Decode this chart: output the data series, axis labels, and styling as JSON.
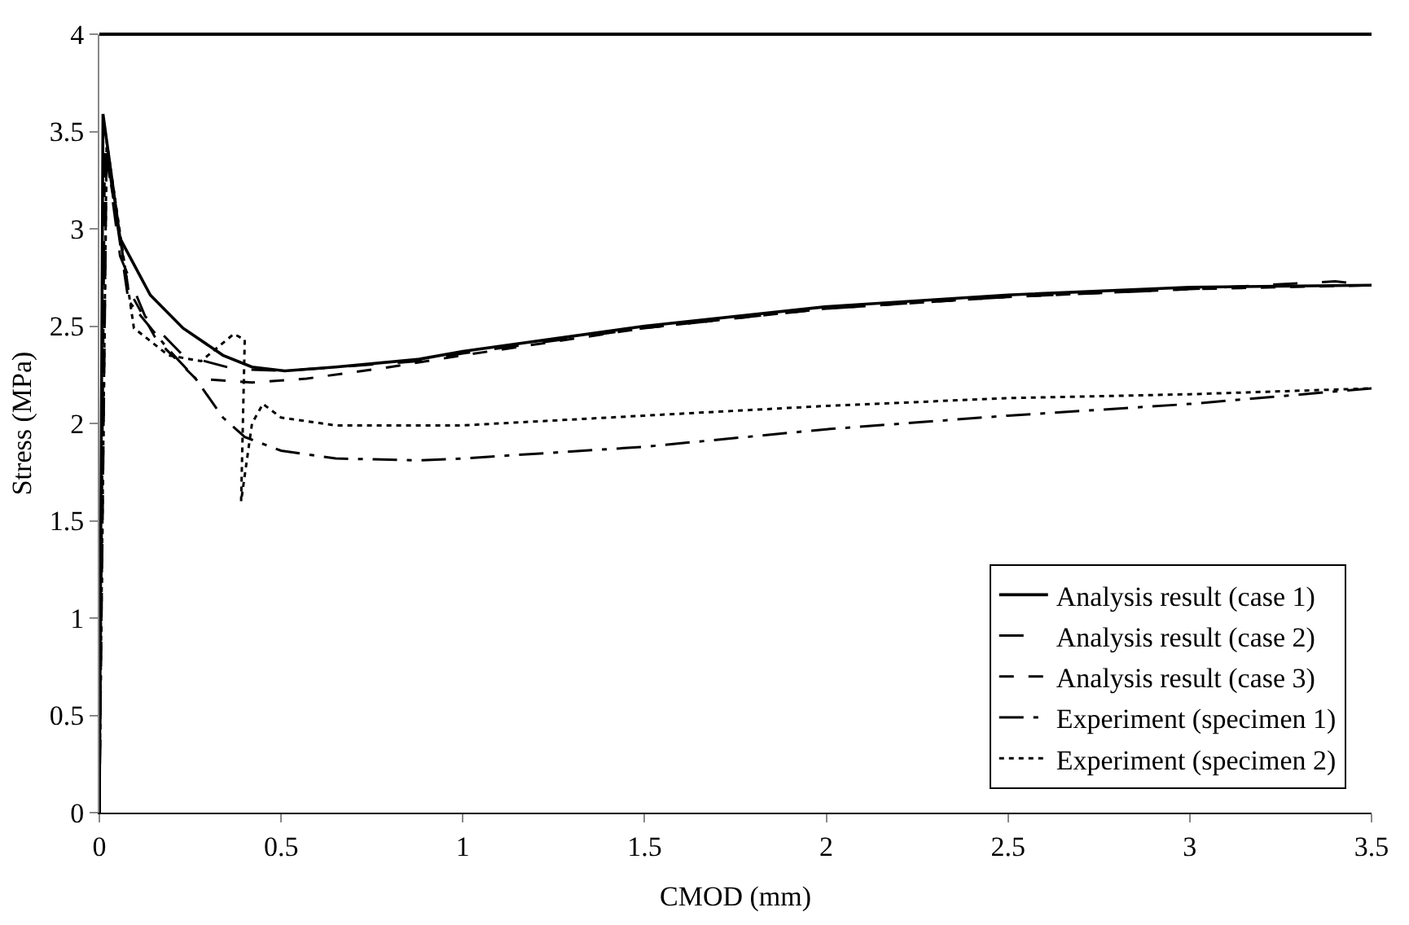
{
  "chart_data": {
    "type": "line",
    "xlabel": "CMOD (mm)",
    "ylabel": "Stress (MPa)",
    "xlim": [
      0,
      3.5
    ],
    "xticks": [
      0,
      0.5,
      1,
      1.5,
      2,
      2.5,
      3,
      3.5
    ],
    "ylim": [
      0,
      4
    ],
    "yticks": [
      0,
      0.5,
      1,
      1.5,
      2,
      2.5,
      3,
      3.5,
      4
    ],
    "legend": "bottom right",
    "marker": "none",
    "series": [
      {
        "name": "Analysis result (case 1)",
        "color": "#000000",
        "line_style": "solid",
        "x": [
          0,
          0.01,
          0.057,
          0.14,
          0.23,
          0.34,
          0.42,
          0.51,
          0.65,
          0.88,
          1.0,
          1.5,
          2.0,
          2.5,
          3.0,
          3.5
        ],
        "values": [
          0,
          3.59,
          2.95,
          2.66,
          2.49,
          2.35,
          2.29,
          2.27,
          2.29,
          2.33,
          2.37,
          2.5,
          2.6,
          2.66,
          2.7,
          2.71
        ]
      },
      {
        "name": "Analysis result (case 2)",
        "color": "#000000",
        "line_style": "longdash",
        "x": [
          0,
          0.015,
          0.057,
          0.126,
          0.23,
          0.37,
          0.51,
          0.88,
          1.0,
          1.5,
          2.0,
          2.5,
          3.0,
          3.4,
          3.5
        ],
        "values": [
          0,
          3.45,
          2.86,
          2.55,
          2.35,
          2.28,
          2.27,
          2.32,
          2.36,
          2.49,
          2.59,
          2.65,
          2.69,
          2.73,
          2.71
        ]
      },
      {
        "name": "Analysis result (case 3)",
        "color": "#000000",
        "line_style": "dashed",
        "x": [
          0,
          0.015,
          0.08,
          0.157,
          0.265,
          0.42,
          0.57,
          0.8,
          1.0,
          1.5,
          2.0,
          2.5,
          3.0,
          3.5
        ],
        "values": [
          0,
          3.42,
          2.69,
          2.43,
          2.23,
          2.21,
          2.23,
          2.29,
          2.35,
          2.49,
          2.59,
          2.65,
          2.69,
          2.71
        ]
      },
      {
        "name": "Experiment (specimen 1)",
        "color": "#000000",
        "line_style": "dashdot",
        "x": [
          0,
          0.02,
          0.08,
          0.19,
          0.265,
          0.34,
          0.4,
          0.5,
          0.65,
          0.88,
          1.0,
          1.5,
          2.0,
          2.5,
          3.0,
          3.5
        ],
        "values": [
          0,
          3.4,
          2.63,
          2.38,
          2.23,
          2.03,
          1.93,
          1.86,
          1.82,
          1.81,
          1.82,
          1.88,
          1.97,
          2.04,
          2.1,
          2.18
        ]
      },
      {
        "name": "Experiment (specimen 2)",
        "color": "#000000",
        "line_style": "dotted",
        "x": [
          0,
          0.02,
          0.095,
          0.19,
          0.28,
          0.37,
          0.4,
          0.39,
          0.42,
          0.45,
          0.5,
          0.65,
          0.88,
          1.0,
          1.5,
          2.0,
          2.5,
          3.0,
          3.5
        ],
        "values": [
          0.08,
          3.45,
          2.49,
          2.35,
          2.32,
          2.46,
          2.43,
          1.6,
          2.0,
          2.1,
          2.03,
          1.99,
          1.99,
          1.99,
          2.04,
          2.09,
          2.13,
          2.15,
          2.18
        ]
      }
    ]
  }
}
